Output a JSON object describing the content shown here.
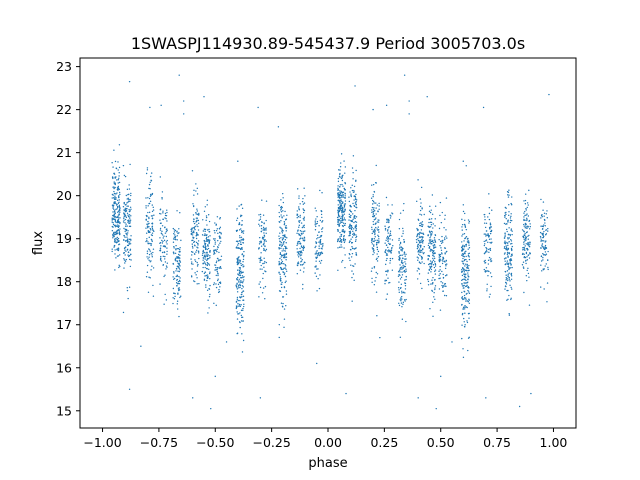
{
  "chart_data": {
    "type": "scatter",
    "title": "1SWASPJ114930.89-545437.9 Period 3005703.0s",
    "xlabel": "phase",
    "ylabel": "flux",
    "xlim": [
      -1.1,
      1.1
    ],
    "ylim": [
      14.6,
      23.2
    ],
    "xticks": [
      -1.0,
      -0.75,
      -0.5,
      -0.25,
      0.0,
      0.25,
      0.5,
      0.75,
      1.0
    ],
    "xtick_labels": [
      "−1.00",
      "−0.75",
      "−0.50",
      "−0.25",
      "0.00",
      "0.25",
      "0.50",
      "0.75",
      "1.00"
    ],
    "yticks": [
      15,
      16,
      17,
      18,
      19,
      20,
      21,
      22,
      23
    ],
    "ytick_labels": [
      "15",
      "16",
      "17",
      "18",
      "19",
      "20",
      "21",
      "22",
      "23"
    ],
    "marker_color": "#1f77b4",
    "grid": false,
    "clusters": [
      {
        "phase": -0.94,
        "flux": 19.6,
        "spread": 0.55,
        "count": 230
      },
      {
        "phase": -0.89,
        "flux": 19.2,
        "spread": 0.55,
        "count": 150
      },
      {
        "phase": -0.79,
        "flux": 19.2,
        "spread": 0.6,
        "count": 120
      },
      {
        "phase": -0.73,
        "flux": 18.9,
        "spread": 0.5,
        "count": 90
      },
      {
        "phase": -0.67,
        "flux": 18.4,
        "spread": 0.5,
        "count": 120
      },
      {
        "phase": -0.59,
        "flux": 19.0,
        "spread": 0.5,
        "count": 110
      },
      {
        "phase": -0.54,
        "flux": 18.7,
        "spread": 0.5,
        "count": 140
      },
      {
        "phase": -0.49,
        "flux": 18.5,
        "spread": 0.55,
        "count": 90
      },
      {
        "phase": -0.39,
        "flux": 18.2,
        "spread": 0.7,
        "count": 200
      },
      {
        "phase": -0.29,
        "flux": 18.8,
        "spread": 0.5,
        "count": 90
      },
      {
        "phase": -0.2,
        "flux": 18.7,
        "spread": 0.6,
        "count": 170
      },
      {
        "phase": -0.12,
        "flux": 19.0,
        "spread": 0.5,
        "count": 120
      },
      {
        "phase": -0.04,
        "flux": 18.9,
        "spread": 0.45,
        "count": 90
      },
      {
        "phase": 0.06,
        "flux": 19.6,
        "spread": 0.55,
        "count": 230
      },
      {
        "phase": 0.11,
        "flux": 19.2,
        "spread": 0.55,
        "count": 150
      },
      {
        "phase": 0.21,
        "flux": 19.2,
        "spread": 0.6,
        "count": 120
      },
      {
        "phase": 0.27,
        "flux": 18.9,
        "spread": 0.5,
        "count": 90
      },
      {
        "phase": 0.33,
        "flux": 18.4,
        "spread": 0.5,
        "count": 120
      },
      {
        "phase": 0.41,
        "flux": 19.0,
        "spread": 0.5,
        "count": 110
      },
      {
        "phase": 0.46,
        "flux": 18.7,
        "spread": 0.5,
        "count": 140
      },
      {
        "phase": 0.51,
        "flux": 18.5,
        "spread": 0.55,
        "count": 90
      },
      {
        "phase": 0.61,
        "flux": 18.2,
        "spread": 0.7,
        "count": 200
      },
      {
        "phase": 0.71,
        "flux": 18.8,
        "spread": 0.5,
        "count": 90
      },
      {
        "phase": 0.8,
        "flux": 18.7,
        "spread": 0.6,
        "count": 170
      },
      {
        "phase": 0.88,
        "flux": 19.0,
        "spread": 0.5,
        "count": 120
      },
      {
        "phase": 0.96,
        "flux": 18.9,
        "spread": 0.45,
        "count": 90
      }
    ],
    "outliers": [
      {
        "phase": -0.88,
        "flux": 22.65
      },
      {
        "phase": -0.79,
        "flux": 22.05
      },
      {
        "phase": -0.74,
        "flux": 22.1
      },
      {
        "phase": -0.64,
        "flux": 22.2
      },
      {
        "phase": -0.64,
        "flux": 21.9
      },
      {
        "phase": -0.66,
        "flux": 22.8
      },
      {
        "phase": -0.55,
        "flux": 22.3
      },
      {
        "phase": -0.4,
        "flux": 20.8
      },
      {
        "phase": -0.31,
        "flux": 22.05
      },
      {
        "phase": -0.22,
        "flux": 21.6
      },
      {
        "phase": 0.12,
        "flux": 22.55
      },
      {
        "phase": 0.2,
        "flux": 22.0
      },
      {
        "phase": 0.26,
        "flux": 22.1
      },
      {
        "phase": 0.36,
        "flux": 22.2
      },
      {
        "phase": 0.36,
        "flux": 21.9
      },
      {
        "phase": 0.34,
        "flux": 22.8
      },
      {
        "phase": 0.44,
        "flux": 22.3
      },
      {
        "phase": 0.6,
        "flux": 20.8
      },
      {
        "phase": 0.69,
        "flux": 22.05
      },
      {
        "phase": 0.98,
        "flux": 22.35
      },
      {
        "phase": -0.5,
        "flux": 15.8
      },
      {
        "phase": -0.52,
        "flux": 15.05
      },
      {
        "phase": -0.45,
        "flux": 16.6
      },
      {
        "phase": -0.6,
        "flux": 15.3
      },
      {
        "phase": -0.3,
        "flux": 15.3
      },
      {
        "phase": -0.88,
        "flux": 15.5
      },
      {
        "phase": -0.83,
        "flux": 16.5
      },
      {
        "phase": -0.05,
        "flux": 16.1
      },
      {
        "phase": 0.08,
        "flux": 15.4
      },
      {
        "phase": 0.5,
        "flux": 15.8
      },
      {
        "phase": 0.48,
        "flux": 15.05
      },
      {
        "phase": 0.55,
        "flux": 16.6
      },
      {
        "phase": 0.4,
        "flux": 15.3
      },
      {
        "phase": 0.7,
        "flux": 15.3
      },
      {
        "phase": 0.85,
        "flux": 15.1
      },
      {
        "phase": 0.9,
        "flux": 15.4
      },
      {
        "phase": 0.62,
        "flux": 16.4
      },
      {
        "phase": 0.23,
        "flux": 16.7
      }
    ]
  }
}
